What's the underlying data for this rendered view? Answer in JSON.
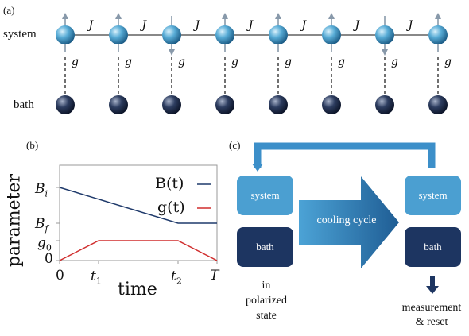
{
  "panel_a": {
    "label": "(a)",
    "system_label": "system",
    "bath_label": "bath",
    "coupling_J": "J",
    "coupling_g": "g",
    "spins": [
      {
        "arrow": "up"
      },
      {
        "arrow": "up"
      },
      {
        "arrow": "down"
      },
      {
        "arrow": "up"
      },
      {
        "arrow": "up"
      },
      {
        "arrow": "up"
      },
      {
        "arrow": "down"
      },
      {
        "arrow": "up"
      }
    ],
    "colors": {
      "system": "#4fa3cf",
      "bath": "#22304f",
      "arrow": "#8899aa"
    }
  },
  "panel_b": {
    "label": "(b)",
    "chart_data": {
      "type": "line",
      "ylabel": "parameter",
      "xlabel": "time",
      "x_ticks": [
        "0",
        "t₁",
        "t₂",
        "T"
      ],
      "y_ticks": [
        "0",
        "g₀",
        "B_f",
        "B_i"
      ],
      "series": [
        {
          "name": "B(t)",
          "color": "#1f3a6b",
          "points": [
            [
              "0",
              "B_i"
            ],
            [
              "t₂",
              "B_f"
            ],
            [
              "T",
              "B_f"
            ]
          ]
        },
        {
          "name": "g(t)",
          "color": "#d02d2d",
          "points": [
            [
              "0",
              "0"
            ],
            [
              "t₁",
              "g₀"
            ],
            [
              "t₂",
              "g₀"
            ],
            [
              "T",
              "0"
            ]
          ]
        }
      ],
      "legend": "top-right"
    }
  },
  "panel_c": {
    "label": "(c)",
    "left_system": "system",
    "left_bath": "bath",
    "right_system": "system",
    "right_bath": "bath",
    "arrow_label": "cooling cycle",
    "left_caption": [
      "in",
      "polarized",
      "state"
    ],
    "right_caption": [
      "measurement",
      "& reset"
    ],
    "colors": {
      "system": "#4b9fd1",
      "bath": "#1d3561",
      "loop": "#3c8fc9"
    }
  }
}
